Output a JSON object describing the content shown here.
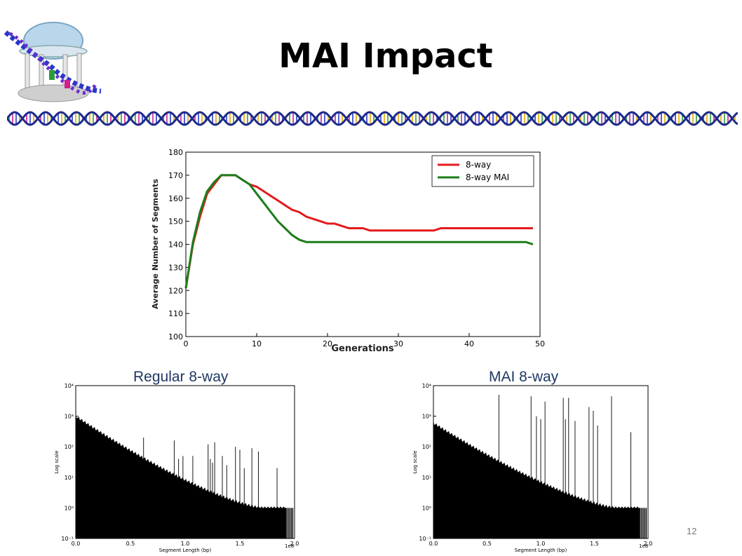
{
  "slide": {
    "title": "MAI Impact",
    "page_number": "12",
    "logo_icon": "old-well-dna-logo",
    "banner_icon": "dna-helix-banner",
    "colors": {
      "red": "#e31a1c",
      "green": "#1b7d1b",
      "label": "#1f3864"
    }
  },
  "chart_data": [
    {
      "type": "line",
      "title": "",
      "xlabel": "Generations",
      "ylabel": "Average Number of Segments",
      "xlim": [
        0,
        50
      ],
      "ylim": [
        100,
        180
      ],
      "xticks": [
        0,
        10,
        20,
        30,
        40,
        50
      ],
      "yticks": [
        100,
        110,
        120,
        130,
        140,
        150,
        160,
        170,
        180
      ],
      "legend_position": "top-right",
      "grid": false,
      "series": [
        {
          "name": "8-way",
          "color": "#e31a1c",
          "x": [
            0,
            1,
            2,
            3,
            4,
            5,
            6,
            7,
            8,
            9,
            10,
            11,
            12,
            13,
            14,
            15,
            16,
            17,
            18,
            19,
            20,
            21,
            22,
            23,
            24,
            25,
            26,
            27,
            28,
            29,
            30,
            31,
            32,
            33,
            34,
            35,
            36,
            37,
            38,
            39,
            40,
            41,
            42,
            43,
            44,
            45,
            46,
            47,
            48,
            49
          ],
          "y": [
            121,
            140,
            152,
            162,
            166,
            170,
            170,
            170,
            168,
            166,
            165,
            163,
            161,
            159,
            157,
            155,
            154,
            152,
            151,
            150,
            149,
            149,
            148,
            147,
            147,
            147,
            146,
            146,
            146,
            146,
            146,
            146,
            146,
            146,
            146,
            146,
            147,
            147,
            147,
            147,
            147,
            147,
            147,
            147,
            147,
            147,
            147,
            147,
            147,
            147
          ]
        },
        {
          "name": "8-way MAI",
          "color": "#1b7d1b",
          "x": [
            0,
            1,
            2,
            3,
            4,
            5,
            6,
            7,
            8,
            9,
            10,
            11,
            12,
            13,
            14,
            15,
            16,
            17,
            18,
            19,
            20,
            21,
            22,
            23,
            24,
            25,
            26,
            27,
            28,
            29,
            30,
            31,
            32,
            33,
            34,
            35,
            36,
            37,
            38,
            39,
            40,
            41,
            42,
            43,
            44,
            45,
            46,
            47,
            48,
            49
          ],
          "y": [
            121,
            141,
            154,
            163,
            167,
            170,
            170,
            170,
            168,
            166,
            162,
            158,
            154,
            150,
            147,
            144,
            142,
            141,
            141,
            141,
            141,
            141,
            141,
            141,
            141,
            141,
            141,
            141,
            141,
            141,
            141,
            141,
            141,
            141,
            141,
            141,
            141,
            141,
            141,
            141,
            141,
            141,
            141,
            141,
            141,
            141,
            141,
            141,
            141,
            140
          ]
        }
      ]
    },
    {
      "type": "bar",
      "title": "Regular 8-way",
      "xlabel": "Segment Length (bp)",
      "ylabel": "Log scale",
      "x_multiplier": "1e8",
      "xlim": [
        0,
        2.0
      ],
      "xticks": [
        "0.0",
        "0.5",
        "1.0",
        "1.5",
        "2.0"
      ],
      "ylim": [
        0.1,
        10000
      ],
      "yscale": "log",
      "yticks": [
        "10⁻¹",
        "10⁰",
        "10¹",
        "10²",
        "10³",
        "10⁴"
      ],
      "bin_count_start": 1000,
      "bin_count_tail": 1,
      "spikes": [
        {
          "x": 0.62,
          "count": 200
        },
        {
          "x": 0.9,
          "count": 160
        },
        {
          "x": 0.94,
          "count": 40
        },
        {
          "x": 0.98,
          "count": 50
        },
        {
          "x": 1.07,
          "count": 50
        },
        {
          "x": 1.21,
          "count": 120
        },
        {
          "x": 1.23,
          "count": 40
        },
        {
          "x": 1.25,
          "count": 30
        },
        {
          "x": 1.27,
          "count": 140
        },
        {
          "x": 1.34,
          "count": 50
        },
        {
          "x": 1.38,
          "count": 25
        },
        {
          "x": 1.46,
          "count": 100
        },
        {
          "x": 1.5,
          "count": 80
        },
        {
          "x": 1.54,
          "count": 20
        },
        {
          "x": 1.61,
          "count": 90
        },
        {
          "x": 1.67,
          "count": 70
        },
        {
          "x": 1.84,
          "count": 20
        }
      ]
    },
    {
      "type": "bar",
      "title": "MAI 8-way",
      "xlabel": "Segment Length (bp)",
      "ylabel": "Log scale",
      "x_multiplier": "1e8",
      "xlim": [
        0,
        2.0
      ],
      "xticks": [
        "0.0",
        "0.5",
        "1.0",
        "1.5",
        "2.0"
      ],
      "ylim": [
        0.1,
        10000
      ],
      "yscale": "log",
      "yticks": [
        "10⁻¹",
        "10⁰",
        "10¹",
        "10²",
        "10³",
        "10⁴"
      ],
      "bin_count_start": 600,
      "bin_count_tail": 1,
      "spikes": [
        {
          "x": 0.61,
          "count": 5000
        },
        {
          "x": 0.91,
          "count": 4500
        },
        {
          "x": 0.96,
          "count": 1000
        },
        {
          "x": 1.0,
          "count": 800
        },
        {
          "x": 1.04,
          "count": 3000
        },
        {
          "x": 1.21,
          "count": 4000
        },
        {
          "x": 1.23,
          "count": 800
        },
        {
          "x": 1.26,
          "count": 4000
        },
        {
          "x": 1.32,
          "count": 700
        },
        {
          "x": 1.45,
          "count": 2000
        },
        {
          "x": 1.49,
          "count": 1500
        },
        {
          "x": 1.53,
          "count": 500
        },
        {
          "x": 1.66,
          "count": 4500
        },
        {
          "x": 1.84,
          "count": 300
        }
      ]
    }
  ]
}
